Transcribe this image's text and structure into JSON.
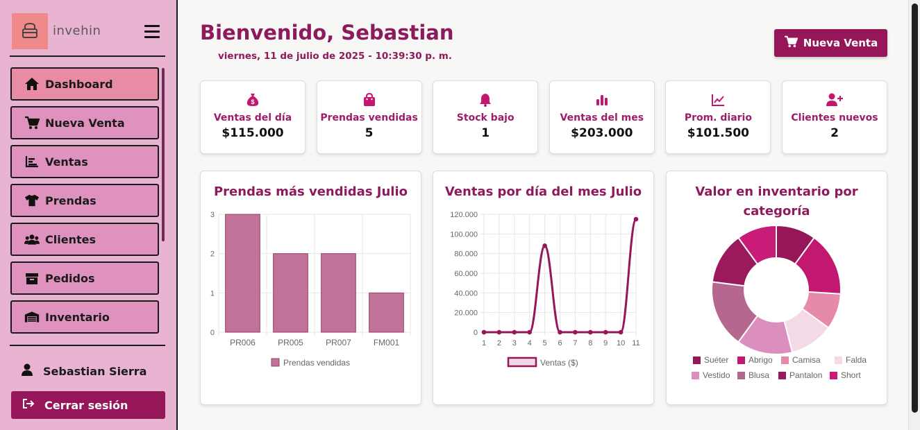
{
  "app": {
    "name": "invehin"
  },
  "sidebar": {
    "items": [
      {
        "label": "Dashboard",
        "icon": "home-icon",
        "active": true
      },
      {
        "label": "Nueva Venta",
        "icon": "cart-icon"
      },
      {
        "label": "Ventas",
        "icon": "chart-icon"
      },
      {
        "label": "Prendas",
        "icon": "shirt-icon"
      },
      {
        "label": "Clientes",
        "icon": "users-icon"
      },
      {
        "label": "Pedidos",
        "icon": "box-icon"
      },
      {
        "label": "Inventario",
        "icon": "warehouse-icon"
      }
    ],
    "user": "Sebastian Sierra",
    "logout_label": "Cerrar sesión"
  },
  "header": {
    "greeting": "Bienvenido, Sebastian",
    "date": "viernes, 11 de julio de 2025 - 10:39:30 p. m.",
    "new_sale_label": "Nueva Venta"
  },
  "stats": [
    {
      "label": "Ventas del día",
      "value": "$115.000",
      "icon": "money-bag-icon"
    },
    {
      "label": "Prendas vendidas",
      "value": "5",
      "icon": "shopping-bag-icon"
    },
    {
      "label": "Stock bajo",
      "value": "1",
      "icon": "bell-icon"
    },
    {
      "label": "Ventas del mes",
      "value": "$203.000",
      "icon": "bar-chart-icon"
    },
    {
      "label": "Prom. diario",
      "value": "$101.500",
      "icon": "line-chart-icon"
    },
    {
      "label": "Clientes nuevos",
      "value": "2",
      "icon": "user-plus-icon"
    }
  ],
  "colors": {
    "primary": "#951659",
    "accent": "#8e1a5e",
    "sidebar": "#e8b4d2"
  },
  "chart_data": [
    {
      "type": "bar",
      "title": "Prendas más vendidas Julio",
      "categories": [
        "PR006",
        "PR005",
        "PR007",
        "FM001"
      ],
      "series": [
        {
          "name": "Prendas vendidas",
          "values": [
            3,
            2,
            2,
            1
          ]
        }
      ],
      "ylim": [
        0,
        3
      ],
      "yticks": [
        "0",
        "1",
        "2",
        "3"
      ],
      "legend": "bottom"
    },
    {
      "type": "line",
      "title": "Ventas por día del mes Julio",
      "x": [
        1,
        2,
        3,
        4,
        5,
        6,
        7,
        8,
        9,
        10,
        11
      ],
      "series": [
        {
          "name": "Ventas ($)",
          "values": [
            0,
            0,
            0,
            0,
            88000,
            0,
            0,
            0,
            0,
            0,
            115000
          ]
        }
      ],
      "ylim": [
        0,
        120000
      ],
      "yticks": [
        "0",
        "20.000",
        "40.000",
        "60.000",
        "80.000",
        "100.000",
        "120.000"
      ],
      "legend": "bottom"
    },
    {
      "type": "pie",
      "title_lines": [
        "Valor en inventario por",
        "categoría"
      ],
      "labels": [
        "Suéter",
        "Abrigo",
        "Camisa",
        "Falda",
        "Vestido",
        "Blusa",
        "Pantalon",
        "Short"
      ],
      "values": [
        10,
        16,
        9,
        11,
        14,
        17,
        13,
        10
      ],
      "colors": [
        "#951659",
        "#c2186f",
        "#e58aab",
        "#f4d9e6",
        "#dc8fbe",
        "#b5678f",
        "#9b1a5e",
        "#c81c78"
      ],
      "legend": "bottom"
    }
  ]
}
